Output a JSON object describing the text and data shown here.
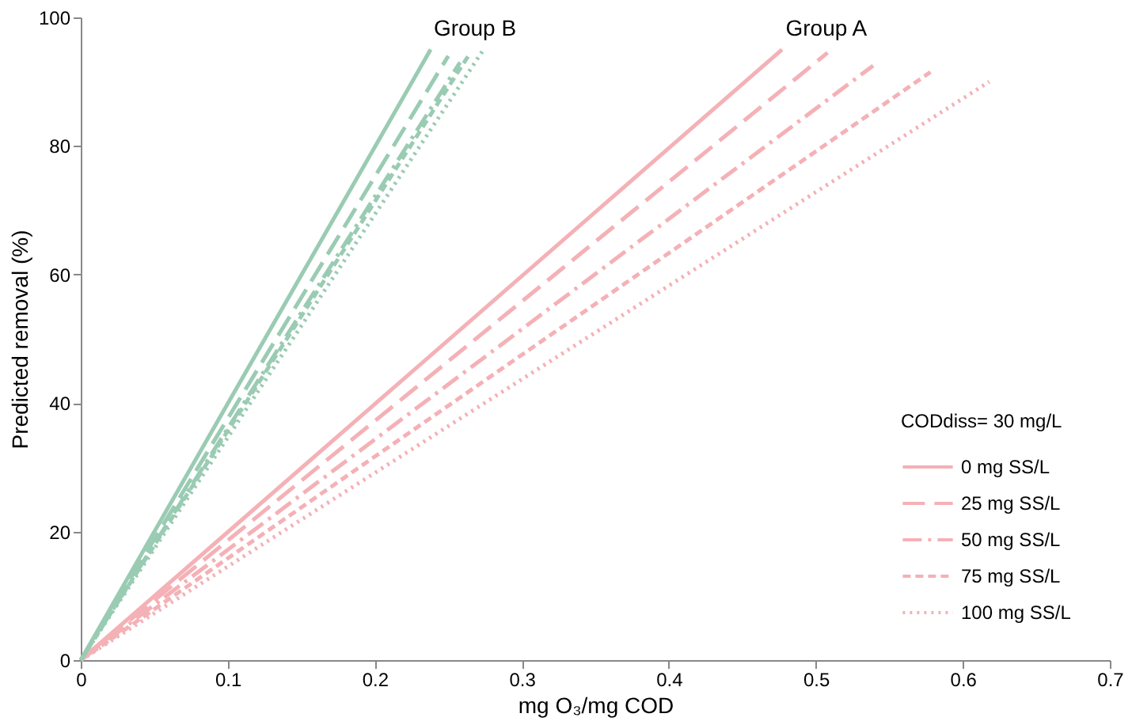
{
  "chart_data": {
    "type": "line",
    "xlabel": "mg O₃/mg COD",
    "ylabel": "Predicted removal (%)",
    "legend_title": "CODdiss= 30 mg/L",
    "legend": "bottom right",
    "grid": false,
    "marker": "none",
    "xlim": [
      0,
      0.7
    ],
    "xticks": [
      0,
      0.1,
      0.2,
      0.3,
      0.4,
      0.5,
      0.6,
      0.7
    ],
    "ylim": [
      0,
      100
    ],
    "yticks": [
      0,
      20,
      40,
      60,
      80,
      100
    ],
    "series": [
      {
        "name": "0 mg SS/L",
        "color": "#f4b1b6",
        "line_style": "solid",
        "x": [
          0,
          0.477
        ],
        "values": [
          0,
          95
        ]
      },
      {
        "name": "25 mg SS/L",
        "color": "#f4b1b6",
        "line_style": "longdashed",
        "x": [
          0,
          0.508
        ],
        "values": [
          0,
          94.5
        ]
      },
      {
        "name": "50 mg SS/L",
        "color": "#f4b1b6",
        "line_style": "dashdot",
        "x": [
          0,
          0.539
        ],
        "values": [
          0,
          92.5
        ]
      },
      {
        "name": "75 mg SS/L",
        "color": "#f4b1b6",
        "line_style": "dashed",
        "x": [
          0,
          0.578
        ],
        "values": [
          0,
          91.5
        ]
      },
      {
        "name": "100 mg SS/L",
        "color": "#f4b1b6",
        "line_style": "dotted",
        "x": [
          0,
          0.618
        ],
        "values": [
          0,
          90
        ]
      },
      {
        "color": "#9acbb3",
        "line_style": "solid",
        "x": [
          0,
          0.238
        ],
        "values": [
          0,
          95
        ]
      },
      {
        "color": "#9acbb3",
        "line_style": "longdashed",
        "x": [
          0,
          0.25
        ],
        "values": [
          0,
          94
        ]
      },
      {
        "color": "#9acbb3",
        "line_style": "dashdot",
        "x": [
          0,
          0.258
        ],
        "values": [
          0,
          93
        ]
      },
      {
        "color": "#9acbb3",
        "line_style": "dashed",
        "x": [
          0,
          0.265
        ],
        "values": [
          0,
          94.5
        ]
      },
      {
        "color": "#9acbb3",
        "line_style": "dotted",
        "x": [
          0,
          0.274
        ],
        "values": [
          0,
          95
        ]
      }
    ],
    "annotations": [
      {
        "text": "Group B",
        "x": 0.238,
        "y": 95
      },
      {
        "text": "Group A",
        "x": 0.477,
        "y": 95
      }
    ]
  }
}
